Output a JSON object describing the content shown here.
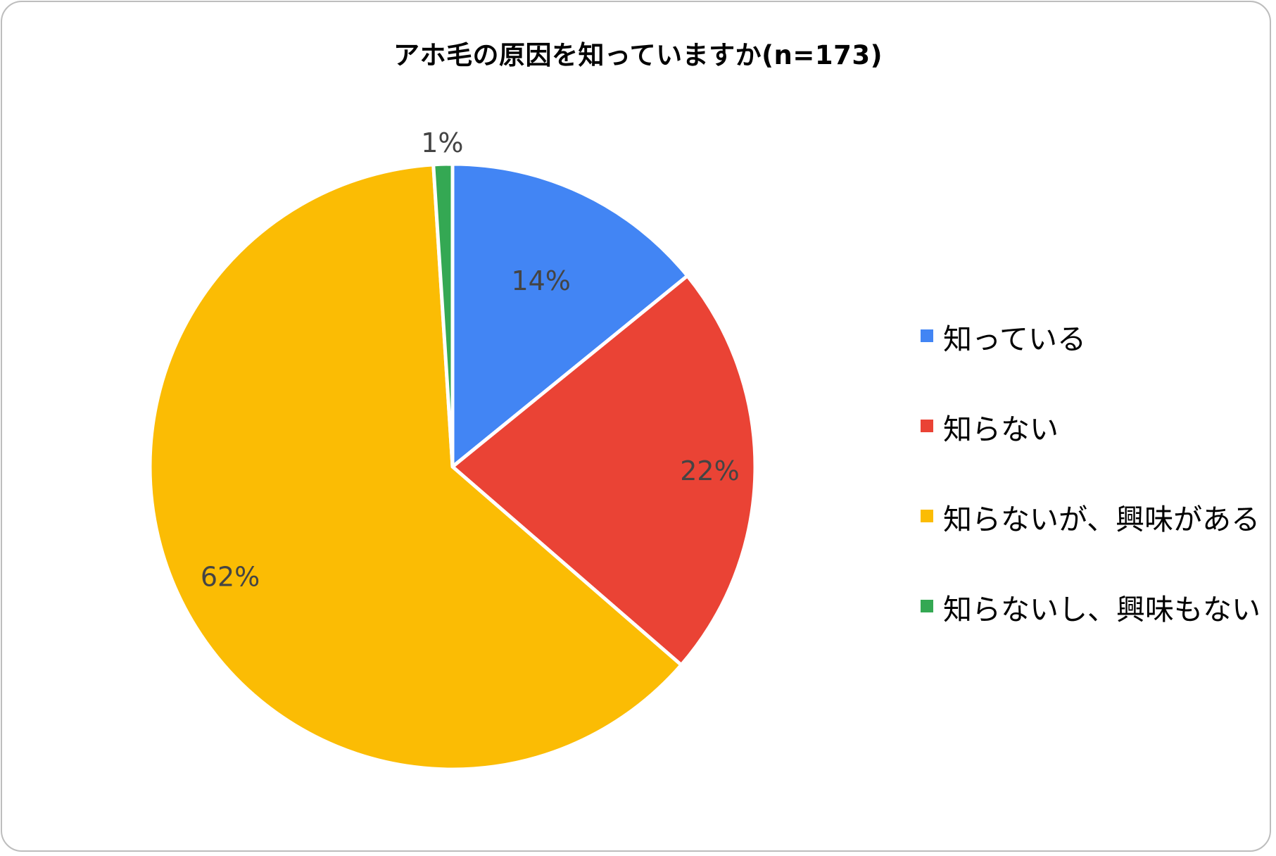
{
  "chart_data": {
    "type": "pie",
    "title": "アホ毛の原因を知っていますか(n=173)",
    "categories": [
      "知っている",
      "知らない",
      "知らないが、興味がある",
      "知らないし、興味もない"
    ],
    "values": [
      14,
      22,
      62,
      1
    ],
    "data_labels": [
      "14%",
      "22%",
      "62%",
      "1%"
    ],
    "colors": [
      "#4285F4",
      "#EA4335",
      "#FBBC04",
      "#34A853"
    ],
    "legend_position": "right",
    "start_angle": "12 o'clock",
    "direction": "clockwise"
  }
}
